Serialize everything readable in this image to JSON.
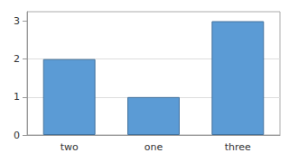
{
  "chart_data": {
    "type": "bar",
    "categories": [
      "two",
      "one",
      "three"
    ],
    "values": [
      2,
      1,
      3
    ],
    "color": "#5b9bd5",
    "ylim": [
      0,
      3.25
    ],
    "yticks": [
      0,
      1,
      2,
      3
    ],
    "grid": true
  }
}
